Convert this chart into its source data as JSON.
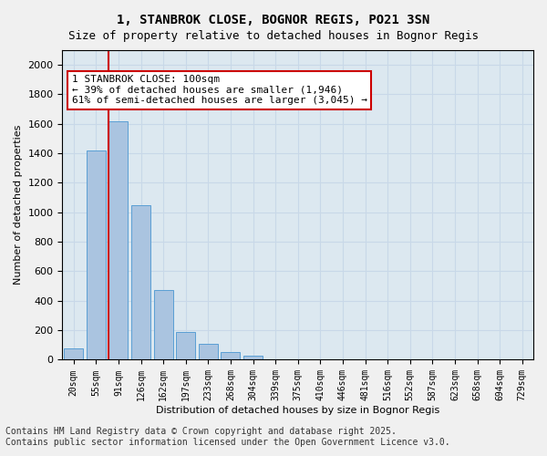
{
  "title_line1": "1, STANBROK CLOSE, BOGNOR REGIS, PO21 3SN",
  "title_line2": "Size of property relative to detached houses in Bognor Regis",
  "xlabel": "Distribution of detached houses by size in Bognor Regis",
  "ylabel": "Number of detached properties",
  "categories": [
    "20sqm",
    "55sqm",
    "91sqm",
    "126sqm",
    "162sqm",
    "197sqm",
    "233sqm",
    "268sqm",
    "304sqm",
    "339sqm",
    "375sqm",
    "410sqm",
    "446sqm",
    "481sqm",
    "516sqm",
    "552sqm",
    "587sqm",
    "623sqm",
    "658sqm",
    "694sqm",
    "729sqm"
  ],
  "values": [
    75,
    1420,
    1620,
    1050,
    470,
    190,
    105,
    55,
    30,
    0,
    0,
    0,
    0,
    0,
    0,
    0,
    0,
    0,
    0,
    0,
    0
  ],
  "bar_color": "#aac4e0",
  "bar_edge_color": "#5a9fd4",
  "vline_x": 2,
  "vline_color": "#cc0000",
  "annotation_text": "1 STANBROK CLOSE: 100sqm\n← 39% of detached houses are smaller (1,946)\n61% of semi-detached houses are larger (3,045) →",
  "annotation_box_color": "#ffffff",
  "annotation_box_edge_color": "#cc0000",
  "annotation_fontsize": 8,
  "ylim": [
    0,
    2100
  ],
  "yticks": [
    0,
    200,
    400,
    600,
    800,
    1000,
    1200,
    1400,
    1600,
    1800,
    2000
  ],
  "grid_color": "#c8d8e8",
  "bg_color": "#dce8f0",
  "footer_line1": "Contains HM Land Registry data © Crown copyright and database right 2025.",
  "footer_line2": "Contains public sector information licensed under the Open Government Licence v3.0.",
  "footer_fontsize": 7
}
